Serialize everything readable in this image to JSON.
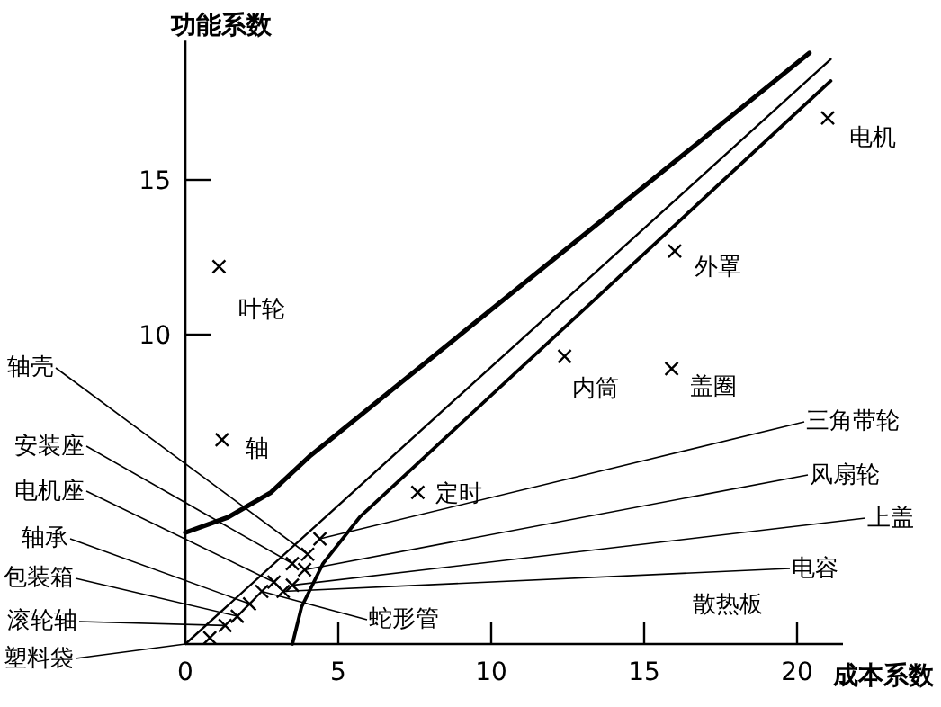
{
  "chart_data": {
    "type": "scatter",
    "xlabel": "成本系数",
    "ylabel": "功能系数",
    "xlim": [
      0,
      21.5
    ],
    "ylim": [
      0,
      19.5
    ],
    "xticks": [
      0,
      5,
      10,
      15,
      20
    ],
    "yticks": [
      10,
      15
    ],
    "marker": "cross",
    "series": [
      {
        "type": "line",
        "marker": "none",
        "color": "#000000",
        "x": [
          0,
          1.4,
          2.8,
          4.1,
          20.4
        ],
        "values": [
          3.6,
          4.1,
          4.9,
          6.1,
          19.1
        ]
      },
      {
        "type": "line",
        "marker": "none",
        "color": "#000000",
        "x": [
          0,
          21.1
        ],
        "values": [
          0,
          18.9
        ]
      },
      {
        "type": "line",
        "marker": "none",
        "color": "#000000",
        "x": [
          3.5,
          3.8,
          4.5,
          5.7,
          21.1
        ],
        "values": [
          0,
          1.2,
          2.6,
          4.1,
          18.2
        ]
      },
      {
        "color": "#000000",
        "x": [
          1.1,
          1.2,
          7.6,
          12.4,
          15.9,
          16.0,
          21.0,
          0.8,
          1.3,
          1.7,
          2.1,
          2.5,
          2.9,
          3.2,
          3.5,
          3.5,
          3.9,
          4.0,
          4.4
        ],
        "values": [
          12.2,
          6.6,
          4.9,
          9.3,
          8.9,
          12.7,
          17.0,
          0.2,
          0.6,
          0.9,
          1.3,
          1.7,
          2.0,
          1.7,
          1.9,
          2.6,
          2.4,
          2.9,
          3.4
        ]
      }
    ],
    "annotations": [
      {
        "text": "叶轮",
        "x": 1.1,
        "y": 12.2
      },
      {
        "text": "轴",
        "x": 1.2,
        "y": 6.6
      },
      {
        "text": "定时",
        "x": 7.6,
        "y": 4.9
      },
      {
        "text": "内筒",
        "x": 12.4,
        "y": 9.3
      },
      {
        "text": "盖圈",
        "x": 15.9,
        "y": 8.9
      },
      {
        "text": "外罩",
        "x": 16.0,
        "y": 12.7
      },
      {
        "text": "电机",
        "x": 21.0,
        "y": 17.0
      },
      {
        "text": "轴壳",
        "x": 4.0,
        "y": 2.9
      },
      {
        "text": "安装座",
        "x": 3.5,
        "y": 2.6
      },
      {
        "text": "电机座",
        "x": 2.9,
        "y": 2.0
      },
      {
        "text": "轴承",
        "x": 2.1,
        "y": 1.3
      },
      {
        "text": "包装箱",
        "x": 1.7,
        "y": 0.9
      },
      {
        "text": "滚轮轴",
        "x": 1.3,
        "y": 0.6
      },
      {
        "text": "塑料袋",
        "x": 0,
        "y": 0
      },
      {
        "text": "三角带轮",
        "x": 4.4,
        "y": 3.4
      },
      {
        "text": "风扇轮",
        "x": 3.9,
        "y": 2.4
      },
      {
        "text": "上盖",
        "x": 3.5,
        "y": 1.9
      },
      {
        "text": "电容",
        "x": 3.2,
        "y": 1.7
      },
      {
        "text": "蛇形管",
        "x": 2.5,
        "y": 1.7
      },
      "散热板"
    ]
  }
}
